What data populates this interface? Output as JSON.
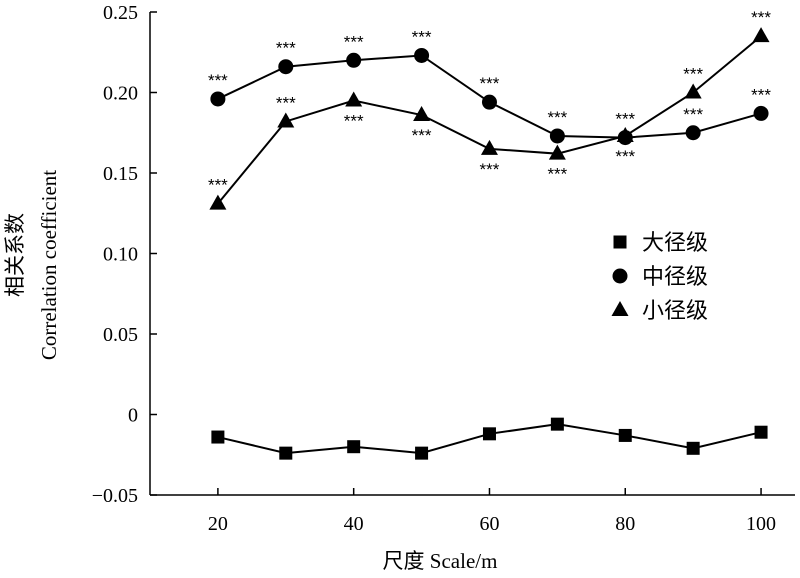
{
  "chart_data": {
    "type": "line",
    "title": "",
    "xlabel": "尺度 Scale/m",
    "ylabel_cn": "相关系数",
    "ylabel_en": "Correlation coefficient",
    "x": [
      20,
      30,
      40,
      50,
      60,
      70,
      80,
      90,
      100
    ],
    "xticks": [
      "20",
      "40",
      "60",
      "80",
      "100"
    ],
    "xtick_values": [
      20,
      40,
      60,
      80,
      100
    ],
    "xlim": [
      10,
      105
    ],
    "yticks": [
      "−0.05",
      "0",
      "0.05",
      "0.10",
      "0.15",
      "0.20",
      "0.25"
    ],
    "ytick_values": [
      -0.05,
      0,
      0.05,
      0.1,
      0.15,
      0.2,
      0.25
    ],
    "ylim": [
      -0.05,
      0.25
    ],
    "grid": false,
    "legend_position": "right-center",
    "series": [
      {
        "name": "大径级",
        "marker": "square",
        "values": [
          -0.014,
          -0.024,
          -0.02,
          -0.024,
          -0.012,
          -0.006,
          -0.013,
          -0.021,
          -0.011
        ],
        "significance": [
          "",
          "",
          "",
          "",
          "",
          "",
          "",
          "",
          ""
        ]
      },
      {
        "name": "中径级",
        "marker": "circle",
        "values": [
          0.196,
          0.216,
          0.22,
          0.223,
          0.194,
          0.173,
          0.172,
          0.175,
          0.187
        ],
        "significance": [
          "***",
          "***",
          "***",
          "***",
          "***",
          "***",
          "***",
          "***",
          "***"
        ],
        "significance_position": [
          "above",
          "above",
          "above",
          "above",
          "above",
          "above",
          "above",
          "above",
          "above"
        ]
      },
      {
        "name": "小径级",
        "marker": "triangle",
        "values": [
          0.131,
          0.182,
          0.195,
          0.186,
          0.165,
          0.162,
          0.173,
          0.2,
          0.235
        ],
        "significance": [
          "***",
          "***",
          "***",
          "***",
          "***",
          "***",
          "***",
          "***",
          "***"
        ],
        "significance_position": [
          "above",
          "above",
          "below",
          "below",
          "below",
          "below",
          "below",
          "above",
          "above"
        ]
      }
    ]
  }
}
